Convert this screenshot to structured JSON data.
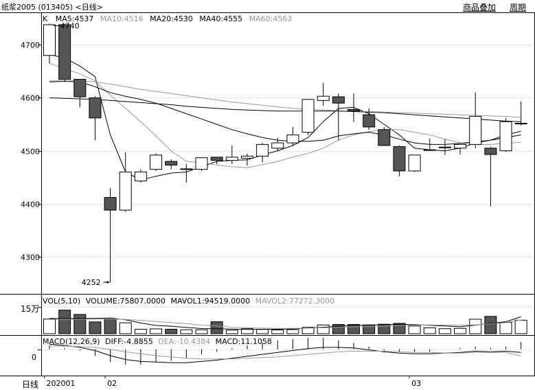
{
  "header": {
    "title": "纸浆2005 (013405) <日线>",
    "overlay_label": "商品叠加",
    "period_label": "周期"
  },
  "legend": {
    "k_label": "K",
    "items": [
      {
        "text": "MA5:4537",
        "color": "#000000"
      },
      {
        "text": "MA10:4516",
        "color": "#999999"
      },
      {
        "text": "MA20:4530",
        "color": "#000000"
      },
      {
        "text": "MA40:4555",
        "color": "#000000"
      },
      {
        "text": "MA60:4563",
        "color": "#999999"
      }
    ]
  },
  "volume_legend": {
    "items": [
      {
        "text": "VOL(5,10)",
        "color": "#000000"
      },
      {
        "text": "VOLUME:75807.0000",
        "color": "#000000"
      },
      {
        "text": "MAVOL1:94519.0000",
        "color": "#000000"
      },
      {
        "text": "MAVOL2:77272.3000",
        "color": "#999999"
      }
    ],
    "axis_label": "15万"
  },
  "macd_legend": {
    "items": [
      {
        "text": "MACD(12,26,9)",
        "color": "#000000"
      },
      {
        "text": "DIFF:-4.8855",
        "color": "#000000"
      },
      {
        "text": "DEA:-10.4384",
        "color": "#999999"
      },
      {
        "text": "MACD:11.1058",
        "color": "#000000"
      }
    ],
    "zero_label": "0"
  },
  "footer": {
    "period": "日线",
    "x_labels": [
      {
        "text": "202001",
        "index": 0
      },
      {
        "text": "02",
        "index": 4
      },
      {
        "text": "03",
        "index": 24
      }
    ]
  },
  "colors": {
    "up": "#000000",
    "down": "#555555",
    "grid": "#d8d8d8",
    "ma_dark": "#000000",
    "ma_light": "#999999"
  },
  "chart_data": {
    "type": "candlestick",
    "price_ticks": [
      4700,
      4600,
      4500,
      4400,
      4300
    ],
    "price_range": [
      4230,
      4760
    ],
    "high_marker": {
      "label": "4740",
      "index": 1,
      "value": 4740
    },
    "low_marker": {
      "label": "4252",
      "index": 4,
      "value": 4252
    },
    "candles": [
      {
        "o": 4680,
        "h": 4740,
        "l": 4665,
        "c": 4738
      },
      {
        "o": 4738,
        "h": 4740,
        "l": 4630,
        "c": 4635
      },
      {
        "o": 4635,
        "h": 4635,
        "l": 4582,
        "c": 4602
      },
      {
        "o": 4600,
        "h": 4603,
        "l": 4520,
        "c": 4562
      },
      {
        "o": 4412,
        "h": 4430,
        "l": 4252,
        "c": 4388
      },
      {
        "o": 4388,
        "h": 4497,
        "l": 4385,
        "c": 4460
      },
      {
        "o": 4443,
        "h": 4465,
        "l": 4440,
        "c": 4460
      },
      {
        "o": 4465,
        "h": 4495,
        "l": 4462,
        "c": 4492
      },
      {
        "o": 4480,
        "h": 4484,
        "l": 4465,
        "c": 4473
      },
      {
        "o": 4465,
        "h": 4475,
        "l": 4440,
        "c": 4466
      },
      {
        "o": 4465,
        "h": 4488,
        "l": 4462,
        "c": 4487
      },
      {
        "o": 4488,
        "h": 4488,
        "l": 4475,
        "c": 4482
      },
      {
        "o": 4482,
        "h": 4510,
        "l": 4475,
        "c": 4488
      },
      {
        "o": 4486,
        "h": 4495,
        "l": 4472,
        "c": 4490
      },
      {
        "o": 4490,
        "h": 4515,
        "l": 4478,
        "c": 4512
      },
      {
        "o": 4505,
        "h": 4525,
        "l": 4500,
        "c": 4515
      },
      {
        "o": 4515,
        "h": 4545,
        "l": 4510,
        "c": 4530
      },
      {
        "o": 4535,
        "h": 4598,
        "l": 4530,
        "c": 4597
      },
      {
        "o": 4595,
        "h": 4628,
        "l": 4585,
        "c": 4603
      },
      {
        "o": 4602,
        "h": 4608,
        "l": 4520,
        "c": 4590
      },
      {
        "o": 4578,
        "h": 4608,
        "l": 4555,
        "c": 4575
      },
      {
        "o": 4568,
        "h": 4580,
        "l": 4540,
        "c": 4545
      },
      {
        "o": 4540,
        "h": 4545,
        "l": 4510,
        "c": 4510
      },
      {
        "o": 4508,
        "h": 4510,
        "l": 4452,
        "c": 4462
      },
      {
        "o": 4462,
        "h": 4492,
        "l": 4460,
        "c": 4492
      },
      {
        "o": 4502,
        "h": 4523,
        "l": 4500,
        "c": 4502
      },
      {
        "o": 4507,
        "h": 4522,
        "l": 4492,
        "c": 4507
      },
      {
        "o": 4505,
        "h": 4512,
        "l": 4493,
        "c": 4512
      },
      {
        "o": 4512,
        "h": 4610,
        "l": 4505,
        "c": 4565
      },
      {
        "o": 4505,
        "h": 4508,
        "l": 4395,
        "c": 4493
      },
      {
        "o": 4500,
        "h": 4562,
        "l": 4498,
        "c": 4555
      },
      {
        "o": 4552,
        "h": 4593,
        "l": 4548,
        "c": 4552
      }
    ],
    "ma_lines": [
      {
        "name": "MA5",
        "color": "#000000",
        "values": [
          4682,
          4675,
          4660,
          4640,
          4530,
          4460,
          4445,
          4452,
          4458,
          4460,
          4470,
          4480,
          4482,
          4483,
          4492,
          4500,
          4510,
          4525,
          4555,
          4580,
          4582,
          4570,
          4550,
          4530,
          4505,
          4502,
          4500,
          4505,
          4515,
          4520,
          4530,
          4537
        ]
      },
      {
        "name": "MA10",
        "color": "#999999",
        "values": [
          4665,
          4655,
          4645,
          4632,
          4605,
          4580,
          4555,
          4528,
          4500,
          4480,
          4478,
          4473,
          4470,
          4468,
          4474,
          4480,
          4488,
          4495,
          4505,
          4520,
          4530,
          4536,
          4540,
          4540,
          4535,
          4530,
          4522,
          4515,
          4512,
          4512,
          4514,
          4516
        ]
      },
      {
        "name": "MA20",
        "color": "#000000",
        "values": [
          4630,
          4631,
          4630,
          4621,
          4610,
          4603,
          4597,
          4590,
          4580,
          4570,
          4560,
          4550,
          4540,
          4532,
          4525,
          4520,
          4518,
          4518,
          4520,
          4528,
          4532,
          4535,
          4530,
          4522,
          4515,
          4512,
          4512,
          4514,
          4517,
          4520,
          4525,
          4530
        ]
      },
      {
        "name": "MA40",
        "color": "#000000",
        "values": [
          4600,
          4599,
          4598,
          4597,
          4595,
          4593,
          4591,
          4589,
          4587,
          4584,
          4582,
          4580,
          4578,
          4577,
          4576,
          4575,
          4575,
          4575,
          4575,
          4575,
          4574,
          4573,
          4572,
          4570,
          4568,
          4566,
          4564,
          4562,
          4560,
          4558,
          4556,
          4555
        ]
      },
      {
        "name": "MA60",
        "color": "#999999",
        "values": [
          4632,
          4632,
          4632,
          4630,
          4626,
          4621,
          4616,
          4612,
          4608,
          4604,
          4600,
          4596,
          4592,
          4589,
          4586,
          4583,
          4580,
          4578,
          4577,
          4576,
          4575,
          4574,
          4573,
          4572,
          4571,
          4570,
          4569,
          4568,
          4567,
          4566,
          4565,
          4563
        ]
      }
    ],
    "volume": {
      "range": [
        0,
        150000
      ],
      "values": [
        82000,
        132000,
        108000,
        66000,
        83000,
        61000,
        25000,
        27000,
        25000,
        22000,
        22000,
        67000,
        20000,
        28000,
        25000,
        21000,
        23000,
        36000,
        49000,
        52000,
        52000,
        49000,
        53000,
        58000,
        43000,
        33000,
        28000,
        30000,
        81000,
        97000,
        63000,
        75807
      ],
      "ma1": [
        85000,
        85000,
        85000,
        86000,
        88000,
        78000,
        60000,
        46000,
        42000,
        35000,
        29000,
        28000,
        26000,
        24000,
        24000,
        25000,
        27000,
        31000,
        36000,
        42000,
        46000,
        49000,
        51000,
        52000,
        51000,
        47000,
        43000,
        39000,
        48000,
        58000,
        67000,
        94519
      ],
      "ma2": [
        80000,
        80000,
        80000,
        81000,
        83000,
        80000,
        75000,
        68000,
        62000,
        56000,
        48000,
        44000,
        36000,
        33000,
        31000,
        30000,
        30000,
        31000,
        33000,
        36000,
        39000,
        40000,
        42000,
        46000,
        48000,
        49000,
        48000,
        47000,
        50000,
        55000,
        62000,
        77272
      ]
    },
    "macd": {
      "range": [
        -40,
        20
      ],
      "diff": [
        8,
        6,
        3,
        -2,
        -10,
        -16,
        -19,
        -20,
        -21,
        -21,
        -19,
        -17,
        -14,
        -11,
        -8,
        -5,
        -2,
        1,
        3,
        3,
        2,
        -1,
        -4,
        -6,
        -7,
        -7,
        -6,
        -5,
        -3,
        -4,
        -3,
        -4.8855
      ],
      "dea": [
        5,
        5,
        4,
        3,
        0,
        -4,
        -7,
        -10,
        -12,
        -14,
        -15,
        -15,
        -15,
        -14,
        -13,
        -12,
        -10,
        -8,
        -6,
        -4,
        -3,
        -3,
        -3,
        -4,
        -5,
        -5,
        -6,
        -6,
        -5,
        -5,
        -5,
        -10.4384
      ],
      "hist": [
        6,
        2,
        -2,
        -10,
        -20,
        -24,
        -24,
        -20,
        -18,
        -14,
        -8,
        -4,
        2,
        6,
        10,
        14,
        16,
        18,
        18,
        14,
        10,
        4,
        -2,
        -4,
        -4,
        -4,
        0,
        2,
        4,
        2,
        4,
        11.1058
      ]
    }
  }
}
